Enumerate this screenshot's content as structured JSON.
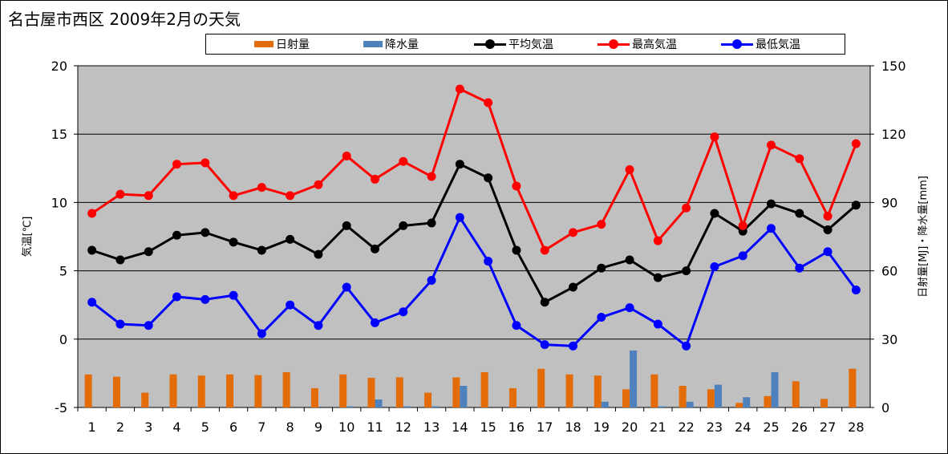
{
  "title": "名古屋市西区  2009年2月の天気",
  "chart_data": {
    "type": "line",
    "x": [
      1,
      2,
      3,
      4,
      5,
      6,
      7,
      8,
      9,
      10,
      11,
      12,
      13,
      14,
      15,
      16,
      17,
      18,
      19,
      20,
      21,
      22,
      23,
      24,
      25,
      26,
      27,
      28
    ],
    "ylabel_left": "気温[℃]",
    "ylabel_right": "日射量[MJ]・降水量[mm]",
    "ylim_left": [
      -5,
      20
    ],
    "yticks_left": [
      -5,
      0,
      5,
      10,
      15,
      20
    ],
    "ylim_right": [
      0,
      150
    ],
    "yticks_right": [
      0,
      30,
      60,
      90,
      120,
      150
    ],
    "grid": true,
    "legend_position": "top",
    "series": [
      {
        "name": "日射量",
        "kind": "bar",
        "axis": "right",
        "color": "#E36C09",
        "values": [
          14.5,
          13.5,
          6.5,
          14.5,
          14,
          14.5,
          14.2,
          15.5,
          8.5,
          14.5,
          13,
          13.2,
          6.5,
          13.2,
          15.5,
          8.5,
          17,
          14.5,
          14,
          8,
          14.5,
          9.5,
          8,
          2,
          5,
          11.5,
          3.8,
          17
        ]
      },
      {
        "name": "降水量",
        "kind": "bar",
        "axis": "right",
        "color": "#4F81BD",
        "values": [
          0,
          0,
          0,
          0,
          0,
          0,
          0,
          0,
          0,
          0.5,
          3.5,
          0.5,
          0.5,
          9.5,
          0,
          0,
          0,
          0,
          2.5,
          25,
          0.5,
          2.5,
          10,
          4.5,
          15.5,
          0,
          0,
          0
        ]
      },
      {
        "name": "平均気温",
        "kind": "line",
        "axis": "left",
        "color": "#000000",
        "values": [
          6.5,
          5.8,
          6.4,
          7.6,
          7.8,
          7.1,
          6.5,
          7.3,
          6.2,
          8.3,
          6.6,
          8.3,
          8.5,
          12.8,
          11.8,
          6.5,
          2.7,
          3.8,
          5.2,
          5.8,
          4.5,
          5.0,
          9.2,
          7.9,
          9.9,
          9.2,
          8.0,
          9.8
        ]
      },
      {
        "name": "最高気温",
        "kind": "line",
        "axis": "left",
        "color": "#FF0000",
        "values": [
          9.2,
          10.6,
          10.5,
          12.8,
          12.9,
          10.5,
          11.1,
          10.5,
          11.3,
          13.4,
          11.7,
          13.0,
          11.9,
          18.3,
          17.3,
          11.2,
          6.5,
          7.8,
          8.4,
          12.4,
          7.2,
          9.6,
          14.8,
          8.3,
          14.2,
          13.2,
          9.0,
          14.3
        ]
      },
      {
        "name": "最低気温",
        "kind": "line",
        "axis": "left",
        "color": "#0000FF",
        "values": [
          2.7,
          1.1,
          1.0,
          3.1,
          2.9,
          3.2,
          0.4,
          2.5,
          1.0,
          3.8,
          1.2,
          2.0,
          4.3,
          8.9,
          5.7,
          1.0,
          -0.4,
          -0.5,
          1.6,
          2.3,
          1.1,
          -0.5,
          5.3,
          6.1,
          8.1,
          5.2,
          6.4,
          3.6
        ]
      }
    ]
  }
}
